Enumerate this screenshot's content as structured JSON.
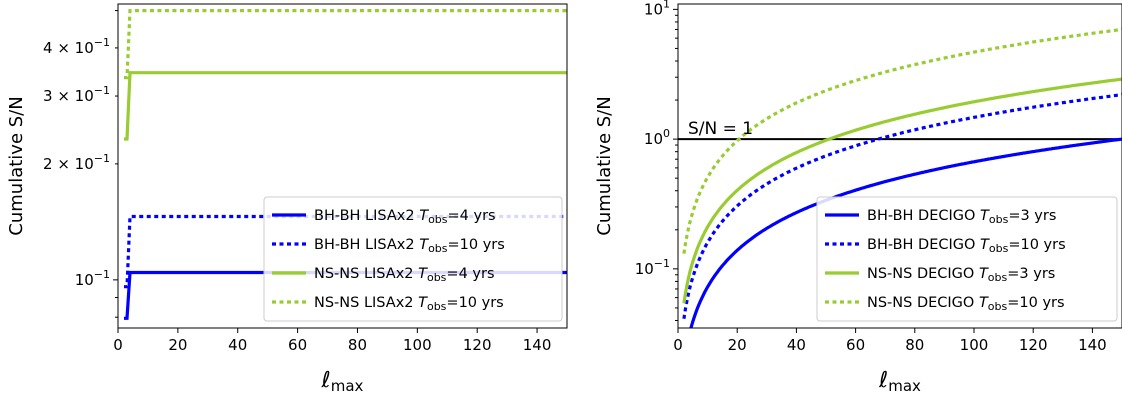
{
  "chart_data": [
    {
      "type": "line",
      "panel": "left",
      "xlabel_base": "ℓ",
      "xlabel_sub": "max",
      "ylabel": "Cumulative S/N",
      "xlim": [
        0,
        150
      ],
      "ylim": [
        0.075,
        0.52
      ],
      "yscale": "log",
      "xticks": [
        0,
        20,
        40,
        60,
        80,
        100,
        120,
        140
      ],
      "yticks": [
        {
          "value": 0.1,
          "base": "10",
          "exp": "−1",
          "mant": ""
        },
        {
          "value": 0.2,
          "base": "10",
          "exp": "−1",
          "mant": "2 × "
        },
        {
          "value": 0.3,
          "base": "10",
          "exp": "−1",
          "mant": "3 × "
        },
        {
          "value": 0.4,
          "base": "10",
          "exp": "−1",
          "mant": "4 × "
        }
      ],
      "legend_position": "lower-right",
      "series": [
        {
          "name": "BH-BH LISAx2 T_obs=4 yrs",
          "label_pre": "BH-BH LISAx2 ",
          "label_post": "=4 yrs",
          "color": "#0000ff",
          "dash": "solid",
          "x": [
            2,
            3,
            4,
            150
          ],
          "y": [
            0.0795,
            0.0795,
            0.1045,
            0.1045
          ]
        },
        {
          "name": "BH-BH LISAx2 T_obs=10 yrs",
          "label_pre": "BH-BH LISAx2 ",
          "label_post": "=10 yrs",
          "color": "#0000ff",
          "dash": "dotted",
          "x": [
            2,
            3,
            4,
            150
          ],
          "y": [
            0.096,
            0.096,
            0.146,
            0.146
          ]
        },
        {
          "name": "NS-NS LISAx2 T_obs=4 yrs",
          "label_pre": "NS-NS LISAx2 ",
          "label_post": "=4 yrs",
          "color": "#99cc33",
          "dash": "solid",
          "x": [
            2,
            3,
            4,
            150
          ],
          "y": [
            0.232,
            0.232,
            0.345,
            0.345
          ]
        },
        {
          "name": "NS-NS LISAx2 T_obs=10 yrs",
          "label_pre": "NS-NS LISAx2 ",
          "label_post": "=10 yrs",
          "color": "#99cc33",
          "dash": "dotted",
          "x": [
            2,
            3,
            4,
            150
          ],
          "y": [
            0.335,
            0.335,
            0.5,
            0.5
          ]
        }
      ]
    },
    {
      "type": "line",
      "panel": "right",
      "xlabel_base": "ℓ",
      "xlabel_sub": "max",
      "ylabel": "Cumulative S/N",
      "xlim": [
        0,
        150
      ],
      "ylim": [
        0.035,
        11
      ],
      "yscale": "log",
      "xticks": [
        0,
        20,
        40,
        60,
        80,
        100,
        120,
        140
      ],
      "yticks": [
        {
          "value": 0.1,
          "base": "10",
          "exp": "−1",
          "mant": ""
        },
        {
          "value": 1,
          "base": "10",
          "exp": "0",
          "mant": ""
        },
        {
          "value": 10,
          "base": "10",
          "exp": "1",
          "mant": ""
        }
      ],
      "hline": {
        "y": 1,
        "label": "S/N = 1",
        "color": "#000000"
      },
      "legend_position": "lower-right",
      "series": [
        {
          "name": "BH-BH DECIGO T_obs=3 yrs",
          "label_pre": "BH-BH DECIGO ",
          "label_post": "=3 yrs",
          "color": "#0000ff",
          "dash": "solid",
          "y_at_150": 1.0
        },
        {
          "name": "BH-BH DECIGO T_obs=10 yrs",
          "label_pre": "BH-BH DECIGO ",
          "label_post": "=10 yrs",
          "color": "#0000ff",
          "dash": "dotted",
          "y_at_150": 2.2
        },
        {
          "name": "NS-NS DECIGO T_obs=3 yrs",
          "label_pre": "NS-NS DECIGO ",
          "label_post": "=3 yrs",
          "color": "#99cc33",
          "dash": "solid",
          "y_at_150": 2.9
        },
        {
          "name": "NS-NS DECIGO T_obs=10 yrs",
          "label_pre": "NS-NS DECIGO ",
          "label_post": "=10 yrs",
          "color": "#99cc33",
          "dash": "dotted",
          "y_at_150": 7.0
        }
      ],
      "x_start": 2
    }
  ],
  "legend_T": "T",
  "legend_T_sub": "obs"
}
